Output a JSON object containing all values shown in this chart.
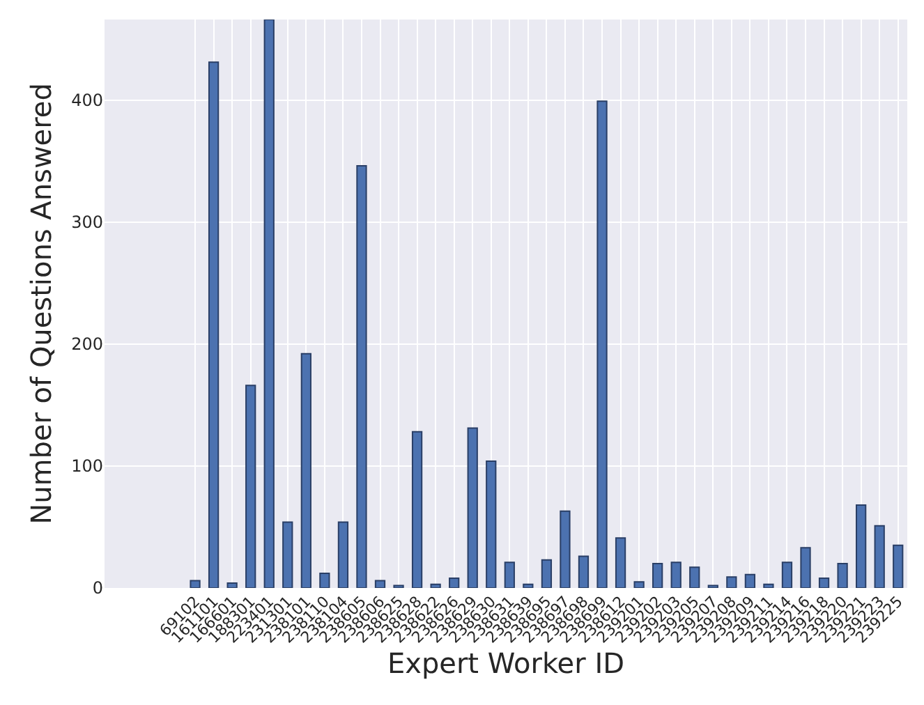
{
  "chart_data": {
    "type": "bar",
    "xlabel": "Expert Worker ID",
    "ylabel": "Number of Questions Answered",
    "categories": [
      "69102",
      "161101",
      "166601",
      "188301",
      "223401",
      "231301",
      "238101",
      "238110",
      "238104",
      "238605",
      "238606",
      "238625",
      "238628",
      "238622",
      "238626",
      "238629",
      "238630",
      "238631",
      "238639",
      "238695",
      "238697",
      "238698",
      "238699",
      "238612",
      "239201",
      "239202",
      "239203",
      "239205",
      "239207",
      "239208",
      "239209",
      "239211",
      "239214",
      "239216",
      "239218",
      "239220",
      "239221",
      "239223",
      "239225"
    ],
    "values": [
      6,
      431,
      4,
      166,
      466,
      54,
      192,
      12,
      54,
      346,
      6,
      2,
      128,
      3,
      8,
      131,
      104,
      21,
      3,
      23,
      63,
      26,
      399,
      41,
      5,
      20,
      21,
      17,
      2,
      9,
      11,
      3,
      21,
      33,
      8,
      20,
      68,
      51,
      35
    ],
    "color": "#4c72b0",
    "ylim": [
      0,
      466
    ],
    "yticks": [
      0,
      100,
      200,
      300,
      400
    ],
    "grid": true
  }
}
